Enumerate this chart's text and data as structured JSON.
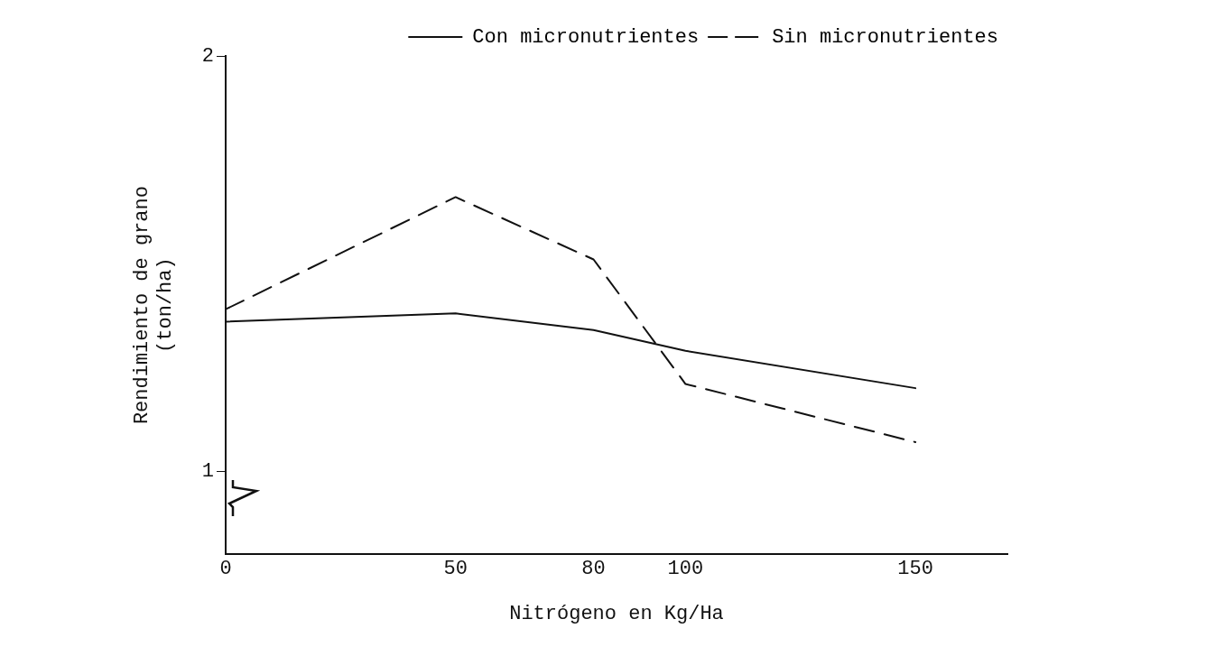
{
  "chart_data": {
    "type": "line",
    "xlabel": "Nitrógeno en Kg/Ha",
    "ylabel": "Rendimiento de grano\n(ton/ha)",
    "xlim": [
      0,
      170
    ],
    "xticks": [
      0,
      50,
      80,
      100,
      150
    ],
    "ylim": [
      0.8,
      2
    ],
    "yticks": [
      1,
      2
    ],
    "series": [
      {
        "name": "Con micronutrientes",
        "color": "#111111",
        "line_style": "solid",
        "marker": "none",
        "x": [
          0,
          50,
          80,
          100,
          150
        ],
        "values": [
          1.36,
          1.38,
          1.34,
          1.29,
          1.2
        ]
      },
      {
        "name": "Sin micronutrientes",
        "color": "#111111",
        "line_style": "dashed",
        "marker": "none",
        "x": [
          0,
          50,
          80,
          100,
          150
        ],
        "values": [
          1.39,
          1.66,
          1.51,
          1.21,
          1.07
        ]
      }
    ],
    "grid": false,
    "legend": "top right"
  }
}
